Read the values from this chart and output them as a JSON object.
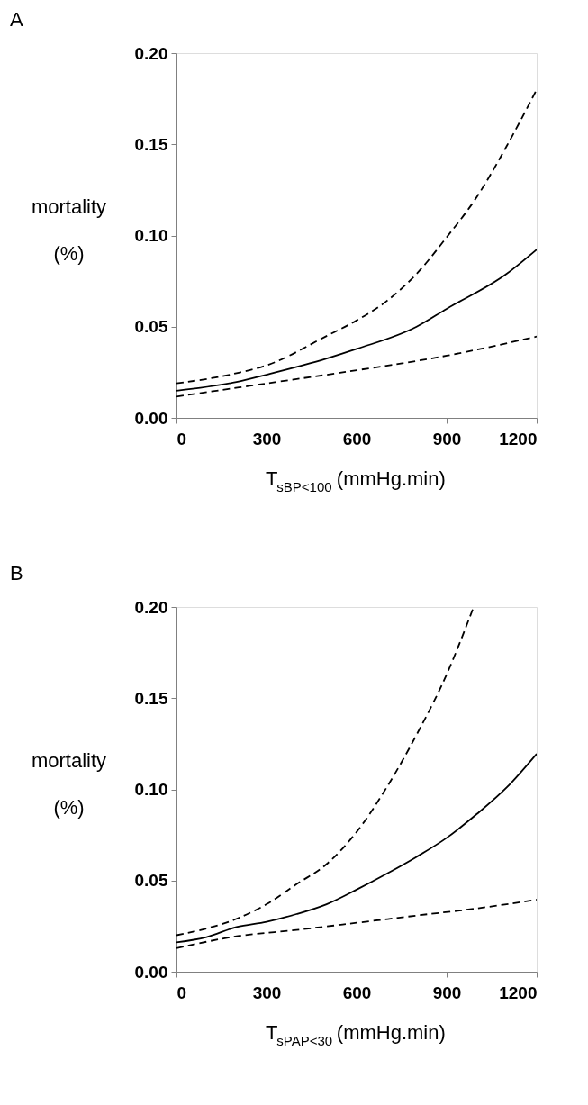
{
  "chart_data": [
    {
      "type": "line",
      "title": "A",
      "xlabel": "T$_{sBP<100}$ (mmHg.min)",
      "ylabel": "mortality (%)",
      "xlim": [
        0,
        1200
      ],
      "xticks": [
        0,
        300,
        600,
        900,
        1200
      ],
      "ylim": [
        0,
        0.2
      ],
      "yticks": [
        {
          "value": 0,
          "label": "0.00"
        },
        {
          "value": 0.05,
          "label": "0.05"
        },
        {
          "value": 0.1,
          "label": "0.10"
        },
        {
          "value": 0.15,
          "label": "0.15"
        },
        {
          "value": 0.2,
          "label": "0.20"
        }
      ],
      "grid": false,
      "series": [
        {
          "color": "#000000",
          "line_style": "dashed",
          "x": [
            0,
            200,
            300,
            500,
            600,
            700,
            800,
            900,
            1000,
            1100,
            1200
          ],
          "values": [
            0.0189,
            0.0245,
            0.0288,
            0.0449,
            0.0534,
            0.064,
            0.079,
            0.099,
            0.121,
            0.149,
            0.18
          ]
        },
        {
          "color": "#000000",
          "line_style": "solid",
          "x": [
            0,
            200,
            300,
            500,
            600,
            800,
            900,
            1100,
            1200
          ],
          "values": [
            0.0149,
            0.0197,
            0.0237,
            0.0325,
            0.0378,
            0.05,
            0.0598,
            0.079,
            0.0923
          ]
        },
        {
          "color": "#000000",
          "line_style": "dashed",
          "x": [
            0,
            300,
            600,
            900,
            1200
          ],
          "values": [
            0.0117,
            0.0189,
            0.0261,
            0.0341,
            0.0446
          ]
        }
      ]
    },
    {
      "type": "line",
      "title": "B",
      "xlabel": "T$_{sPAP<30}$ (mmHg.min)",
      "ylabel": "mortality (%)",
      "xlim": [
        0,
        1200
      ],
      "xticks": [
        0,
        300,
        600,
        900,
        1200
      ],
      "ylim": [
        0,
        0.2
      ],
      "yticks": [
        {
          "value": 0,
          "label": "0.00"
        },
        {
          "value": 0.05,
          "label": "0.05"
        },
        {
          "value": 0.1,
          "label": "0.10"
        },
        {
          "value": 0.15,
          "label": "0.15"
        },
        {
          "value": 0.2,
          "label": "0.20"
        }
      ],
      "grid": false,
      "series": [
        {
          "color": "#000000",
          "line_style": "dashed",
          "x": [
            0,
            100,
            200,
            300,
            400,
            500,
            600,
            700,
            800,
            900,
            990
          ],
          "values": [
            0.02,
            0.0237,
            0.029,
            0.037,
            0.048,
            0.059,
            0.0766,
            0.101,
            0.13,
            0.163,
            0.2
          ]
        },
        {
          "color": "#000000",
          "line_style": "solid",
          "x": [
            0,
            100,
            200,
            300,
            400,
            500,
            600,
            700,
            800,
            900,
            1000,
            1100,
            1200
          ],
          "values": [
            0.0161,
            0.019,
            0.0245,
            0.0274,
            0.0316,
            0.037,
            0.045,
            0.0537,
            0.063,
            0.0734,
            0.0864,
            0.101,
            0.1195
          ]
        },
        {
          "color": "#000000",
          "line_style": "dashed",
          "x": [
            0,
            200,
            400,
            600,
            800,
            1000,
            1200
          ],
          "values": [
            0.0129,
            0.0194,
            0.0229,
            0.0268,
            0.0308,
            0.0347,
            0.0395
          ]
        }
      ]
    }
  ]
}
